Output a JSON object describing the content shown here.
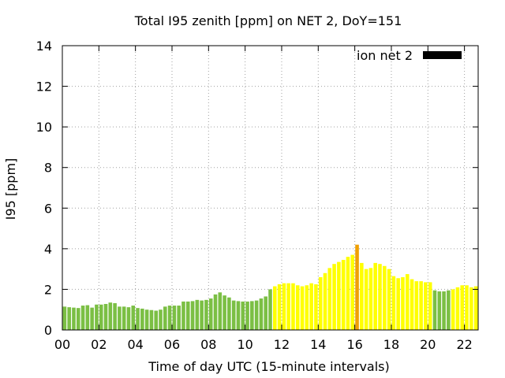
{
  "chart_data": {
    "type": "bar",
    "title": "Total I95 zenith [ppm] on NET 2, DoY=151",
    "xlabel": "Time of day UTC (15-minute intervals)",
    "ylabel": "I95 [ppm]",
    "ylim": [
      0,
      14
    ],
    "xlim": [
      0,
      22.75
    ],
    "yticks": [
      0,
      2,
      4,
      6,
      8,
      10,
      12,
      14
    ],
    "ytick_labels": [
      "0",
      "2",
      "4",
      "6",
      "8",
      "10",
      "12",
      "14"
    ],
    "xticks": [
      0,
      2,
      4,
      6,
      8,
      10,
      12,
      14,
      16,
      18,
      20,
      22
    ],
    "xtick_labels": [
      "00",
      "02",
      "04",
      "06",
      "08",
      "10",
      "12",
      "14",
      "16",
      "18",
      "20",
      "22"
    ],
    "grid": true,
    "legend": {
      "label": "ion net 2",
      "color": "#000000",
      "placement": "top-right"
    },
    "bar_interval_hours": 0.25,
    "colors": {
      "green": "#7bbf44",
      "yellow": "#ffff00",
      "orange": "#f0a000"
    },
    "series": [
      {
        "values": [
          1.15,
          1.12,
          1.1,
          1.08,
          1.2,
          1.22,
          1.1,
          1.25,
          1.25,
          1.28,
          1.35,
          1.32,
          1.15,
          1.15,
          1.12,
          1.2,
          1.08,
          1.05,
          1.0,
          0.98,
          0.95,
          1.0,
          1.15,
          1.2,
          1.2,
          1.2,
          1.4,
          1.4,
          1.42,
          1.48,
          1.45,
          1.48,
          1.55,
          1.75,
          1.85,
          1.7,
          1.6,
          1.45,
          1.42,
          1.4,
          1.4,
          1.42,
          1.45,
          1.55,
          1.65,
          2.0,
          2.15,
          2.25,
          2.3,
          2.3,
          2.3,
          2.2,
          2.15,
          2.2,
          2.3,
          2.25,
          2.6,
          2.8,
          3.05,
          3.25,
          3.35,
          3.45,
          3.6,
          3.7,
          4.2,
          3.3,
          3.0,
          3.05,
          3.3,
          3.25,
          3.15,
          3.0,
          2.65,
          2.55,
          2.6,
          2.75,
          2.5,
          2.4,
          2.4,
          2.35,
          2.35,
          1.95,
          1.9,
          1.9,
          1.95,
          2.0,
          2.1,
          2.2,
          2.2,
          2.1,
          2.15
        ],
        "color_classes": [
          "green",
          "green",
          "green",
          "green",
          "green",
          "green",
          "green",
          "green",
          "green",
          "green",
          "green",
          "green",
          "green",
          "green",
          "green",
          "green",
          "green",
          "green",
          "green",
          "green",
          "green",
          "green",
          "green",
          "green",
          "green",
          "green",
          "green",
          "green",
          "green",
          "green",
          "green",
          "green",
          "green",
          "green",
          "green",
          "green",
          "green",
          "green",
          "green",
          "green",
          "green",
          "green",
          "green",
          "green",
          "green",
          "green",
          "yellow",
          "yellow",
          "yellow",
          "yellow",
          "yellow",
          "yellow",
          "yellow",
          "yellow",
          "yellow",
          "yellow",
          "yellow",
          "yellow",
          "yellow",
          "yellow",
          "yellow",
          "yellow",
          "yellow",
          "yellow",
          "orange",
          "yellow",
          "yellow",
          "yellow",
          "yellow",
          "yellow",
          "yellow",
          "yellow",
          "yellow",
          "yellow",
          "yellow",
          "yellow",
          "yellow",
          "yellow",
          "yellow",
          "yellow",
          "yellow",
          "green",
          "green",
          "green",
          "green",
          "yellow",
          "yellow",
          "yellow",
          "yellow",
          "yellow",
          "yellow"
        ]
      }
    ]
  }
}
